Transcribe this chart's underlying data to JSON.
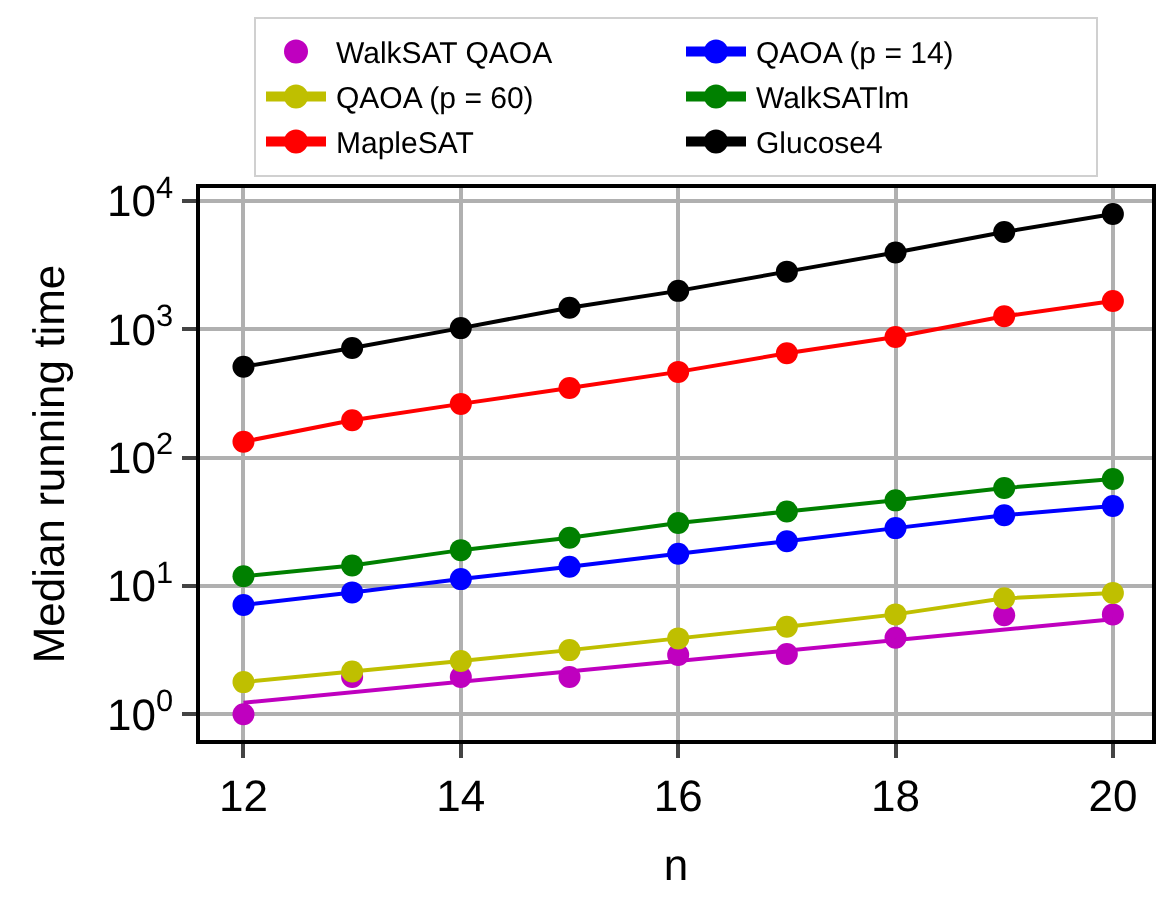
{
  "chart_data": {
    "type": "line",
    "xlabel": "n",
    "ylabel": "Median running time",
    "log": "y",
    "grid": true,
    "legend": "top",
    "marker": "circle",
    "xlim": [
      11.6,
      20.36
    ],
    "xticks": [
      12,
      14,
      16,
      18,
      20
    ],
    "ylim": [
      0.63,
      12600
    ],
    "yticks": [
      {
        "value": 1,
        "label": "10$^{0}$"
      },
      {
        "value": 10,
        "label": "10$^{1}$"
      },
      {
        "value": 100,
        "label": "10$^{2}$"
      },
      {
        "value": 1000,
        "label": "10$^{3}$"
      },
      {
        "value": 10000,
        "label": "10$^{4}$"
      }
    ],
    "x": [
      12,
      13,
      14,
      15,
      16,
      17,
      18,
      19,
      20
    ],
    "series": [
      {
        "name": "WalkSAT QAOA",
        "type": "scatter",
        "color": "#bf00bf",
        "values": [
          1.0,
          1.95,
          1.95,
          1.95,
          2.9,
          2.95,
          3.95,
          5.9,
          6.0
        ]
      },
      {
        "name": "QAOA (p = 14)",
        "color": "#0000ff",
        "values": [
          7.1,
          8.9,
          11.3,
          14.1,
          17.8,
          22.3,
          28.2,
          35.5,
          42
        ]
      },
      {
        "name": "QAOA (p = 60)",
        "color": "#bfbf00",
        "values": [
          1.78,
          2.15,
          2.6,
          3.16,
          3.9,
          4.8,
          6.0,
          8.0,
          8.8
        ]
      },
      {
        "name": "WalkSATlm",
        "color": "#008000",
        "values": [
          11.9,
          14.4,
          19,
          23.7,
          30.9,
          38,
          46.4,
          57.9,
          68
        ]
      },
      {
        "name": "MapleSAT",
        "color": "#ff0000",
        "values": [
          133,
          195,
          262,
          348,
          465,
          650,
          870,
          1260,
          1660
        ]
      },
      {
        "name": "Glucose4",
        "color": "#000000",
        "values": [
          510,
          715,
          1020,
          1470,
          1990,
          2810,
          3960,
          5720,
          7900
        ]
      },
      {
        "type": "line",
        "marker": "none",
        "color": "#bf00bf",
        "x": [
          12,
          20
        ],
        "values": [
          1.23,
          5.5
        ]
      }
    ]
  }
}
